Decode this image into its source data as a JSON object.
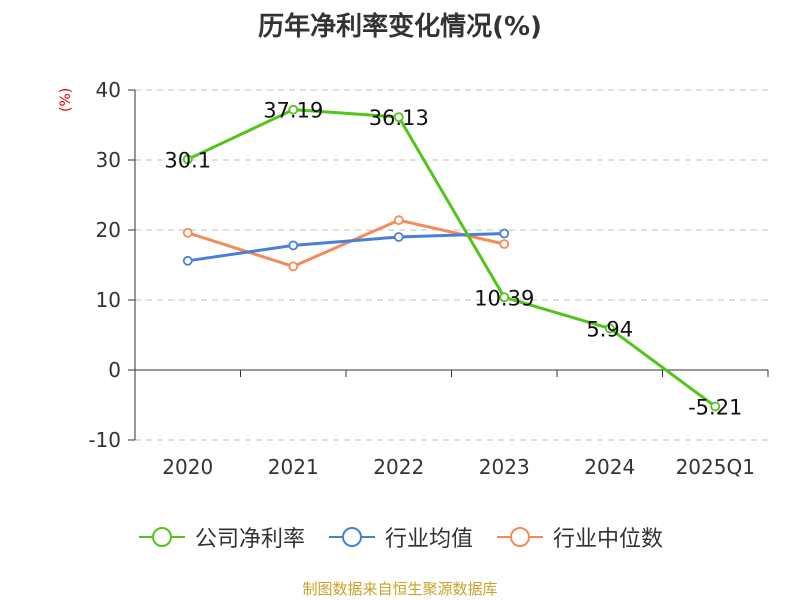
{
  "title": "历年净利率变化情况(%)",
  "source": "制图数据来自恒生聚源数据库",
  "chart_data": {
    "type": "line",
    "title": "历年净利率变化情况(%)",
    "ylabel": "(%)",
    "xlabel": "",
    "categories": [
      "2020",
      "2021",
      "2022",
      "2023",
      "2024",
      "2025Q1"
    ],
    "ylim": [
      -10,
      40
    ],
    "yticks": [
      -10,
      0,
      10,
      20,
      30,
      40
    ],
    "grid": true,
    "legend_position": "bottom",
    "series": [
      {
        "name": "公司净利率",
        "color": "#52c41a",
        "values": [
          30.1,
          37.19,
          36.13,
          10.39,
          5.94,
          -5.21
        ],
        "show_labels": true
      },
      {
        "name": "行业均值",
        "color": "#4a7fd8",
        "values": [
          15.6,
          17.8,
          19.0,
          19.5,
          null,
          null
        ],
        "show_labels": false
      },
      {
        "name": "行业中位数",
        "color": "#f28c5a",
        "values": [
          19.6,
          14.8,
          21.4,
          18.0,
          null,
          null
        ],
        "show_labels": false
      }
    ]
  }
}
